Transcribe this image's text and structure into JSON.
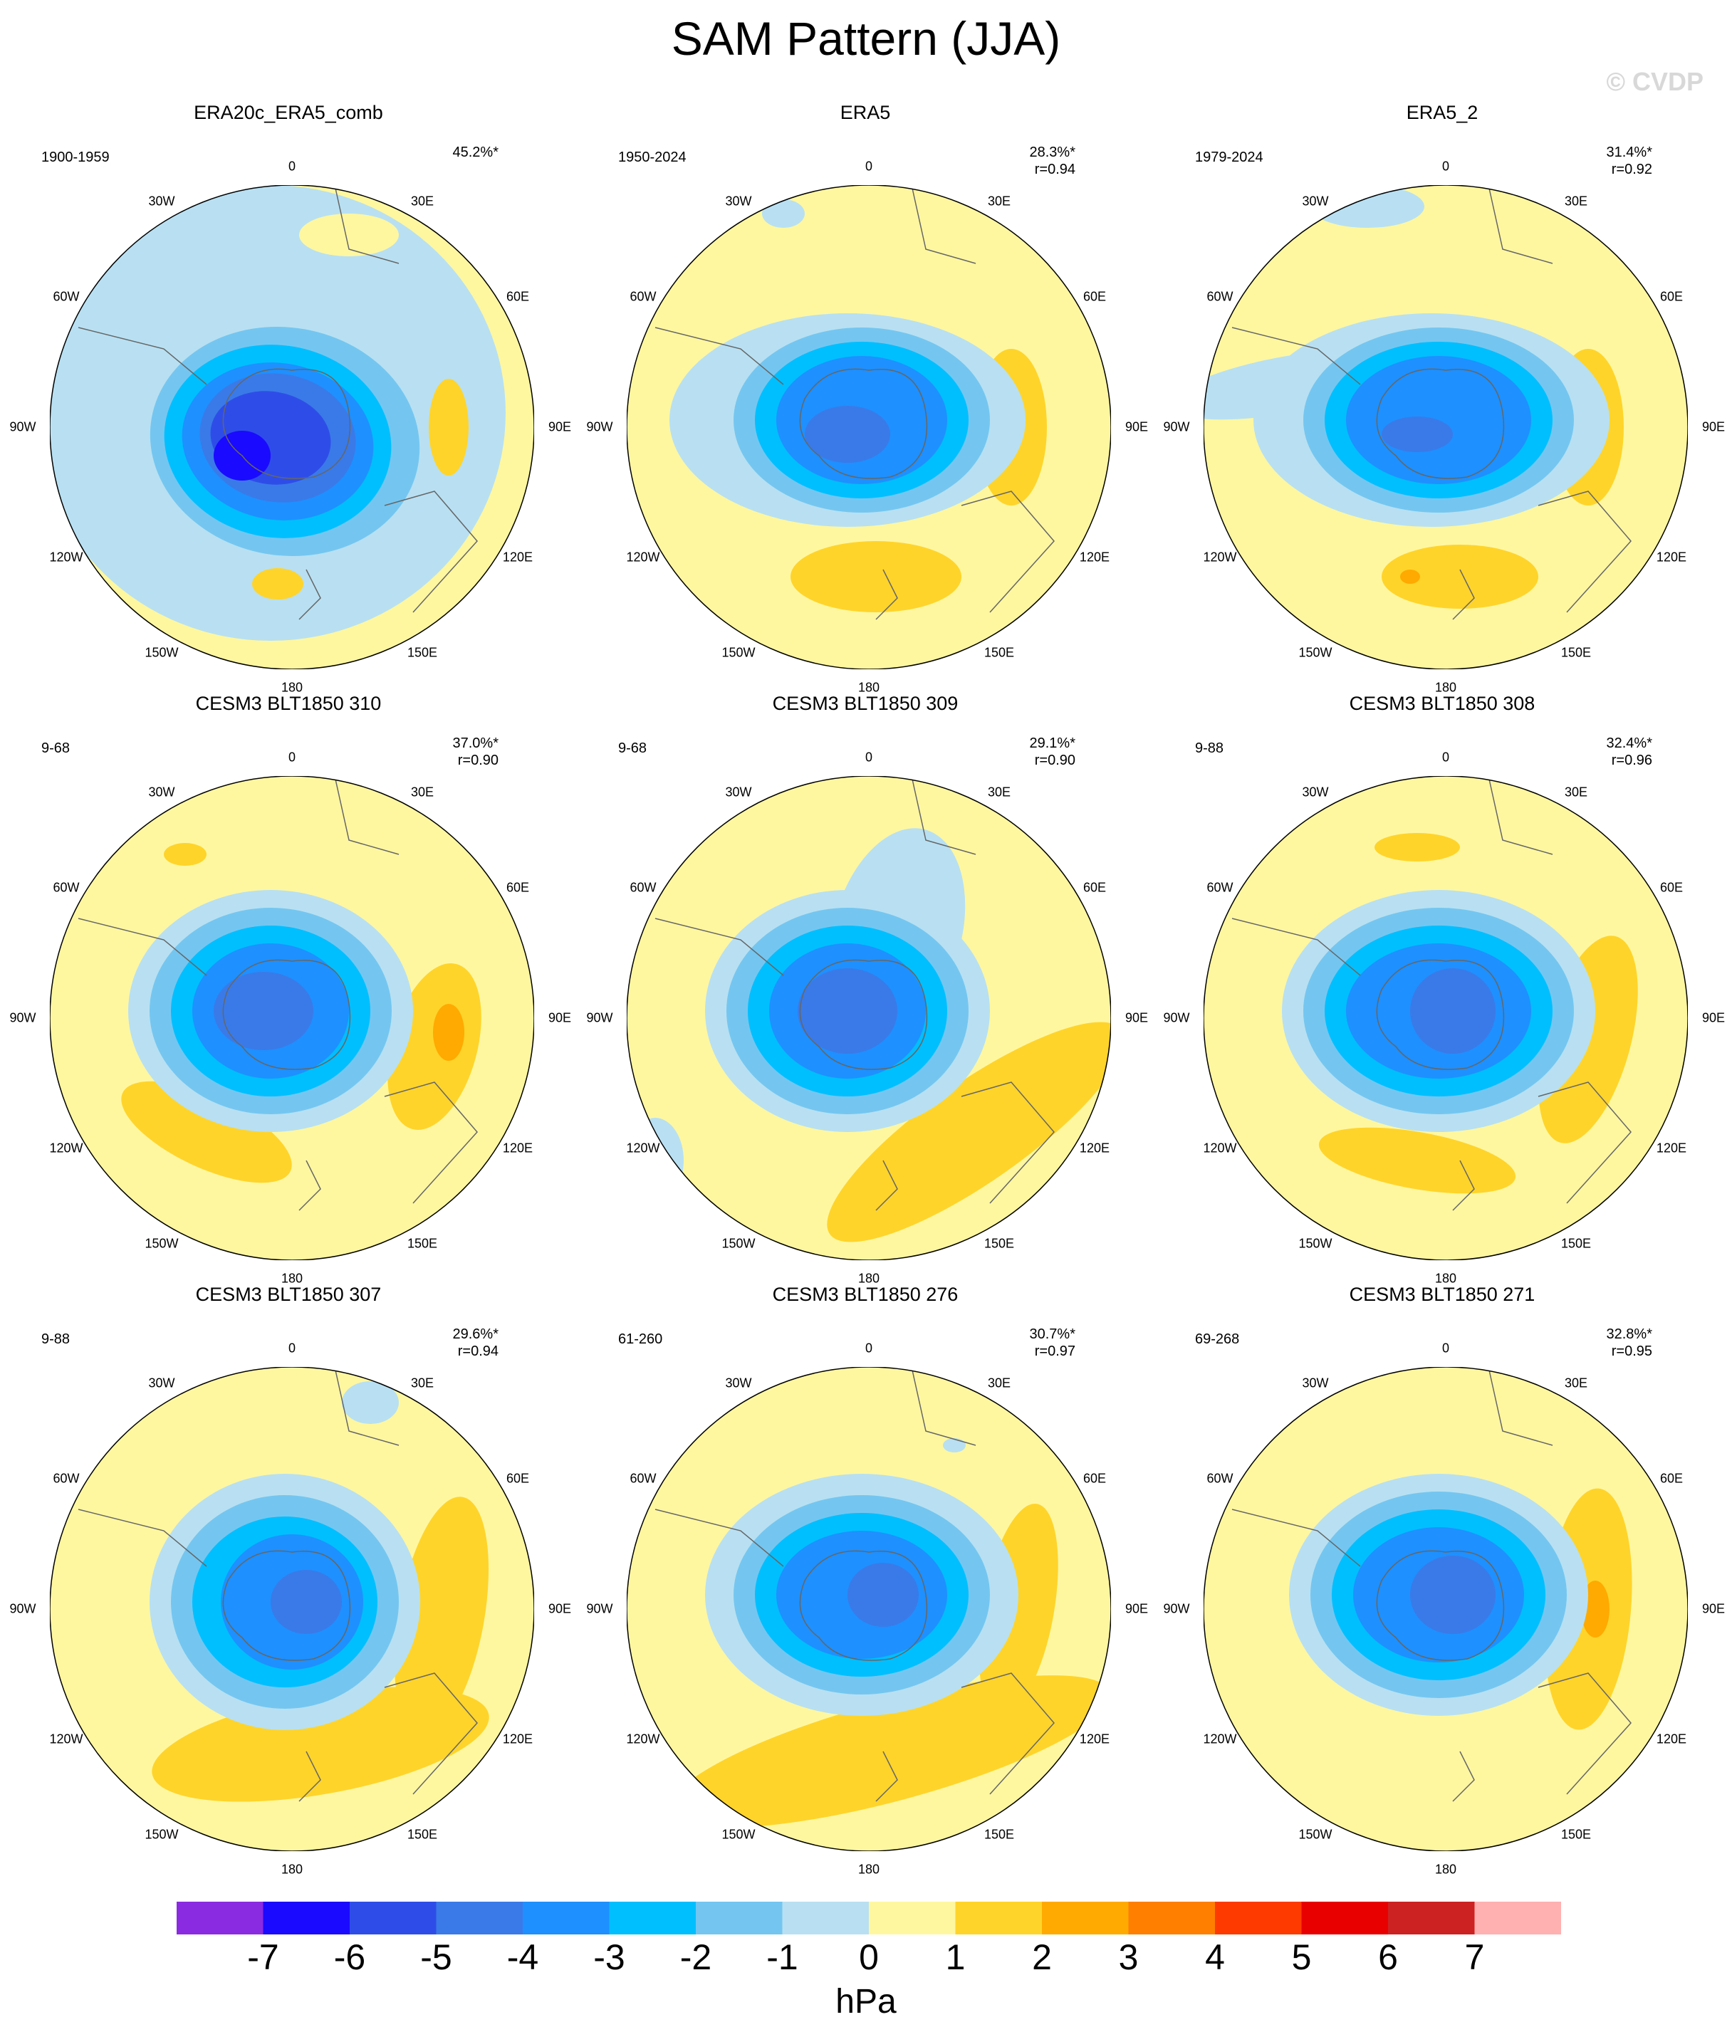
{
  "title": "SAM Pattern (JJA)",
  "watermark": "© CVDP",
  "units": "hPa",
  "colorbar": {
    "levels": [
      "-7",
      "-6",
      "-5",
      "-4",
      "-3",
      "-2",
      "-1",
      "0",
      "1",
      "2",
      "3",
      "4",
      "5",
      "6",
      "7"
    ],
    "colors": [
      "#8a2be2",
      "#1a0aff",
      "#2e4de8",
      "#3a7ae8",
      "#1e90ff",
      "#00bfff",
      "#74c6f0",
      "#b8e0f2",
      "#fff7a0",
      "#ffd42a",
      "#ffaa00",
      "#ff7f00",
      "#ff3a00",
      "#e80000",
      "#cc2222",
      "#ffb0b0"
    ]
  },
  "map_labels": {
    "top": "0",
    "bottom": "180",
    "left": "90W",
    "right": "90E",
    "w30": "30W",
    "e30": "30E",
    "w60": "60W",
    "e60": "60E",
    "w120": "120W",
    "e120": "120E",
    "w150": "150W",
    "e150": "150E"
  },
  "panels": [
    {
      "title": "ERA20c_ERA5_comb",
      "period": "1900-1959",
      "pct": "45.2%*",
      "r": ""
    },
    {
      "title": "ERA5",
      "period": "1950-2024",
      "pct": "28.3%*",
      "r": "r=0.94"
    },
    {
      "title": "ERA5_2",
      "period": "1979-2024",
      "pct": "31.4%*",
      "r": "r=0.92"
    },
    {
      "title": "CESM3 BLT1850 310",
      "period": "9-68",
      "pct": "37.0%*",
      "r": "r=0.90"
    },
    {
      "title": "CESM3 BLT1850 309",
      "period": "9-68",
      "pct": "29.1%*",
      "r": "r=0.90"
    },
    {
      "title": "CESM3 BLT1850 308",
      "period": "9-88",
      "pct": "32.4%*",
      "r": "r=0.96"
    },
    {
      "title": "CESM3 BLT1850 307",
      "period": "9-88",
      "pct": "29.6%*",
      "r": "r=0.94"
    },
    {
      "title": "CESM3 BLT1850 276",
      "period": "61-260",
      "pct": "30.7%*",
      "r": "r=0.97"
    },
    {
      "title": "CESM3 BLT1850 271",
      "period": "69-268",
      "pct": "32.8%*",
      "r": "r=0.95"
    }
  ]
}
